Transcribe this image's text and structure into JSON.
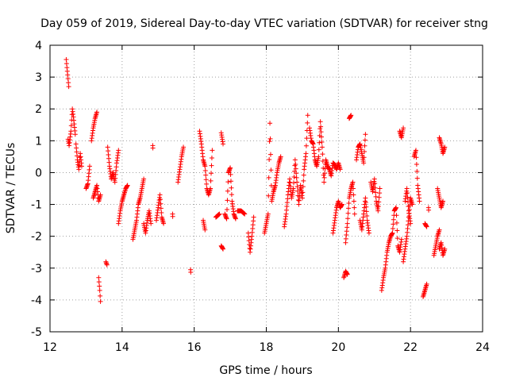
{
  "chart_data": {
    "type": "scatter",
    "title": "Day 059 of 2019, Sidereal Day-to-day VTEC variation (SDTVAR) for receiver stng",
    "xlabel": "GPS time / hours",
    "ylabel": "SDTVAR / TECUs",
    "xlim": [
      12,
      24
    ],
    "ylim": [
      -5,
      4
    ],
    "xticks": [
      "12",
      "14",
      "16",
      "18",
      "20",
      "22",
      "24"
    ],
    "yticks": [
      "-5",
      "-4",
      "-3",
      "-2",
      "-1",
      "0",
      "1",
      "2",
      "3",
      "4"
    ],
    "grid": true,
    "marker": "+",
    "marker_color": "#ff0000",
    "series": [
      {
        "name": "SDTVAR",
        "segments": [
          [
            [
              12.45,
              3.55
            ],
            [
              12.47,
              3.3
            ],
            [
              12.5,
              2.95
            ],
            [
              12.52,
              2.7
            ]
          ],
          [
            [
              12.5,
              1.05
            ],
            [
              12.53,
              0.85
            ],
            [
              12.58,
              1.3
            ],
            [
              12.62,
              2.0
            ],
            [
              12.65,
              1.75
            ],
            [
              12.7,
              1.2
            ]
          ],
          [
            [
              12.72,
              0.9
            ],
            [
              12.76,
              0.4
            ],
            [
              12.8,
              0.1
            ],
            [
              12.84,
              0.6
            ],
            [
              12.88,
              0.2
            ]
          ],
          [
            [
              13.0,
              -0.5
            ],
            [
              13.05,
              -0.35
            ],
            [
              13.1,
              0.2
            ]
          ],
          [
            [
              13.15,
              1.0
            ],
            [
              13.2,
              1.4
            ],
            [
              13.25,
              1.7
            ],
            [
              13.3,
              1.9
            ]
          ],
          [
            [
              13.2,
              -0.8
            ],
            [
              13.25,
              -0.6
            ],
            [
              13.3,
              -0.4
            ],
            [
              13.35,
              -0.9
            ],
            [
              13.4,
              -0.7
            ]
          ],
          [
            [
              13.35,
              -3.3
            ],
            [
              13.38,
              -3.7
            ],
            [
              13.4,
              -4.05
            ]
          ],
          [
            [
              13.55,
              -2.8
            ],
            [
              13.58,
              -2.9
            ]
          ],
          [
            [
              13.6,
              0.8
            ],
            [
              13.65,
              0.2
            ],
            [
              13.7,
              -0.2
            ],
            [
              13.75,
              0.0
            ],
            [
              13.8,
              -0.3
            ],
            [
              13.85,
              0.3
            ],
            [
              13.9,
              0.7
            ]
          ],
          [
            [
              13.9,
              -1.6
            ],
            [
              13.95,
              -1.2
            ],
            [
              14.0,
              -0.9
            ],
            [
              14.05,
              -0.7
            ],
            [
              14.1,
              -0.5
            ],
            [
              14.15,
              -0.4
            ]
          ],
          [
            [
              14.3,
              -2.1
            ],
            [
              14.35,
              -1.8
            ],
            [
              14.4,
              -1.5
            ],
            [
              14.45,
              -1.0
            ],
            [
              14.5,
              -0.8
            ],
            [
              14.55,
              -0.5
            ],
            [
              14.6,
              -0.2
            ]
          ],
          [
            [
              14.6,
              -1.6
            ],
            [
              14.65,
              -1.9
            ],
            [
              14.7,
              -1.5
            ],
            [
              14.75,
              -1.2
            ],
            [
              14.8,
              -1.6
            ]
          ],
          [
            [
              14.85,
              0.85
            ]
          ],
          [
            [
              14.95,
              -1.5
            ],
            [
              15.0,
              -1.1
            ],
            [
              15.05,
              -0.7
            ],
            [
              15.1,
              -1.4
            ],
            [
              15.15,
              -1.6
            ]
          ],
          [
            [
              15.4,
              -1.3
            ]
          ],
          [
            [
              15.55,
              -0.3
            ],
            [
              15.6,
              0.1
            ],
            [
              15.65,
              0.5
            ],
            [
              15.7,
              0.8
            ]
          ],
          [
            [
              15.9,
              -3.05
            ]
          ],
          [
            [
              16.15,
              1.3
            ],
            [
              16.2,
              0.9
            ],
            [
              16.25,
              0.4
            ],
            [
              16.3,
              0.2
            ],
            [
              16.35,
              -0.5
            ],
            [
              16.4,
              -0.7
            ],
            [
              16.45,
              -0.5
            ],
            [
              16.5,
              0.7
            ]
          ],
          [
            [
              16.25,
              -1.5
            ],
            [
              16.3,
              -1.8
            ]
          ],
          [
            [
              16.6,
              -1.4
            ],
            [
              16.7,
              -1.3
            ]
          ],
          [
            [
              16.75,
              1.25
            ],
            [
              16.8,
              0.9
            ]
          ],
          [
            [
              16.75,
              -2.3
            ],
            [
              16.8,
              -2.4
            ]
          ],
          [
            [
              16.85,
              -1.3
            ],
            [
              16.9,
              -1.45
            ],
            [
              16.95,
              0.0
            ],
            [
              17.0,
              0.15
            ],
            [
              17.05,
              -0.9
            ],
            [
              17.1,
              -1.3
            ],
            [
              17.15,
              -1.45
            ]
          ],
          [
            [
              17.2,
              -1.2
            ],
            [
              17.3,
              -1.2
            ],
            [
              17.4,
              -1.3
            ]
          ],
          [
            [
              17.5,
              -1.9
            ],
            [
              17.55,
              -2.5
            ],
            [
              17.6,
              -2.0
            ],
            [
              17.65,
              -1.4
            ]
          ],
          [
            [
              17.95,
              -1.9
            ],
            [
              18.0,
              -1.6
            ],
            [
              18.05,
              -1.3
            ],
            [
              18.1,
              1.55
            ],
            [
              18.15,
              -0.9
            ],
            [
              18.2,
              -0.6
            ],
            [
              18.25,
              -0.4
            ],
            [
              18.3,
              0.0
            ],
            [
              18.35,
              0.3
            ],
            [
              18.4,
              0.5
            ]
          ],
          [
            [
              18.5,
              -1.7
            ],
            [
              18.55,
              -1.3
            ],
            [
              18.6,
              -0.7
            ],
            [
              18.65,
              -0.2
            ],
            [
              18.7,
              -0.8
            ],
            [
              18.75,
              -0.5
            ],
            [
              18.8,
              0.4
            ],
            [
              18.85,
              -0.3
            ],
            [
              18.9,
              -1.0
            ],
            [
              18.95,
              -0.4
            ],
            [
              19.0,
              -0.8
            ],
            [
              19.05,
              0.1
            ],
            [
              19.1,
              0.6
            ],
            [
              19.15,
              1.8
            ]
          ],
          [
            [
              19.2,
              1.4
            ],
            [
              19.25,
              1.0
            ],
            [
              19.3,
              0.9
            ],
            [
              19.35,
              0.4
            ],
            [
              19.4,
              0.2
            ],
            [
              19.45,
              0.5
            ],
            [
              19.5,
              1.6
            ],
            [
              19.55,
              0.8
            ],
            [
              19.6,
              -0.3
            ],
            [
              19.65,
              0.4
            ],
            [
              19.7,
              0.2
            ],
            [
              19.75,
              0.1
            ],
            [
              19.8,
              -0.1
            ],
            [
              19.85,
              0.3
            ],
            [
              19.9,
              0.25
            ],
            [
              19.95,
              0.1
            ],
            [
              20.0,
              0.3
            ],
            [
              20.05,
              0.1
            ]
          ],
          [
            [
              19.85,
              -1.9
            ],
            [
              19.9,
              -1.5
            ],
            [
              19.95,
              -1.1
            ],
            [
              20.0,
              -0.9
            ],
            [
              20.05,
              -1.1
            ],
            [
              20.1,
              -1.0
            ]
          ],
          [
            [
              20.15,
              -3.3
            ],
            [
              20.2,
              -3.1
            ],
            [
              20.25,
              -3.2
            ]
          ],
          [
            [
              20.2,
              -2.2
            ],
            [
              20.25,
              -1.6
            ],
            [
              20.3,
              -0.8
            ],
            [
              20.35,
              -0.5
            ],
            [
              20.4,
              -0.3
            ],
            [
              20.45,
              -1.3
            ]
          ],
          [
            [
              20.3,
              1.7
            ],
            [
              20.35,
              1.8
            ]
          ],
          [
            [
              20.5,
              0.4
            ],
            [
              20.55,
              0.8
            ],
            [
              20.6,
              0.9
            ],
            [
              20.65,
              0.6
            ],
            [
              20.7,
              0.3
            ],
            [
              20.75,
              1.2
            ]
          ],
          [
            [
              20.6,
              -1.5
            ],
            [
              20.65,
              -1.8
            ],
            [
              20.7,
              -1.3
            ],
            [
              20.75,
              -0.8
            ],
            [
              20.8,
              -1.5
            ],
            [
              20.85,
              -1.9
            ]
          ],
          [
            [
              20.9,
              -0.3
            ],
            [
              20.95,
              -0.6
            ],
            [
              21.0,
              -0.2
            ],
            [
              21.05,
              -0.9
            ],
            [
              21.1,
              -1.2
            ],
            [
              21.15,
              -0.5
            ]
          ],
          [
            [
              21.2,
              -3.7
            ],
            [
              21.25,
              -3.3
            ],
            [
              21.3,
              -3.0
            ],
            [
              21.35,
              -2.5
            ],
            [
              21.4,
              -2.2
            ],
            [
              21.45,
              -2.0
            ],
            [
              21.5,
              -1.9
            ],
            [
              21.55,
              -1.2
            ],
            [
              21.6,
              -1.1
            ],
            [
              21.65,
              -2.3
            ],
            [
              21.7,
              -2.5
            ],
            [
              21.75,
              -2.1
            ]
          ],
          [
            [
              21.7,
              1.3
            ],
            [
              21.75,
              1.1
            ],
            [
              21.8,
              1.4
            ]
          ],
          [
            [
              21.8,
              -2.8
            ],
            [
              21.85,
              -2.4
            ],
            [
              21.9,
              -2.0
            ],
            [
              21.95,
              -1.4
            ],
            [
              22.0,
              -0.8
            ],
            [
              22.05,
              -1.0
            ]
          ],
          [
            [
              21.85,
              -0.9
            ],
            [
              21.9,
              -0.5
            ],
            [
              21.95,
              -1.2
            ],
            [
              22.0,
              -1.6
            ]
          ],
          [
            [
              22.1,
              0.5
            ],
            [
              22.15,
              0.7
            ],
            [
              22.2,
              -0.4
            ],
            [
              22.25,
              -0.9
            ]
          ],
          [
            [
              22.35,
              -3.9
            ],
            [
              22.4,
              -3.7
            ],
            [
              22.45,
              -3.5
            ]
          ],
          [
            [
              22.4,
              -1.6
            ],
            [
              22.45,
              -1.7
            ]
          ],
          [
            [
              22.5,
              -1.1
            ]
          ],
          [
            [
              22.65,
              -2.6
            ],
            [
              22.7,
              -2.3
            ],
            [
              22.75,
              -2.0
            ],
            [
              22.8,
              -1.8
            ]
          ],
          [
            [
              22.8,
              1.1
            ],
            [
              22.85,
              0.9
            ],
            [
              22.9,
              0.6
            ],
            [
              22.95,
              0.8
            ]
          ],
          [
            [
              22.75,
              -0.5
            ],
            [
              22.8,
              -0.8
            ],
            [
              22.85,
              -1.1
            ],
            [
              22.9,
              -0.9
            ]
          ],
          [
            [
              22.8,
              -2.4
            ],
            [
              22.85,
              -2.2
            ],
            [
              22.9,
              -2.6
            ],
            [
              22.95,
              -2.4
            ]
          ]
        ]
      }
    ]
  }
}
